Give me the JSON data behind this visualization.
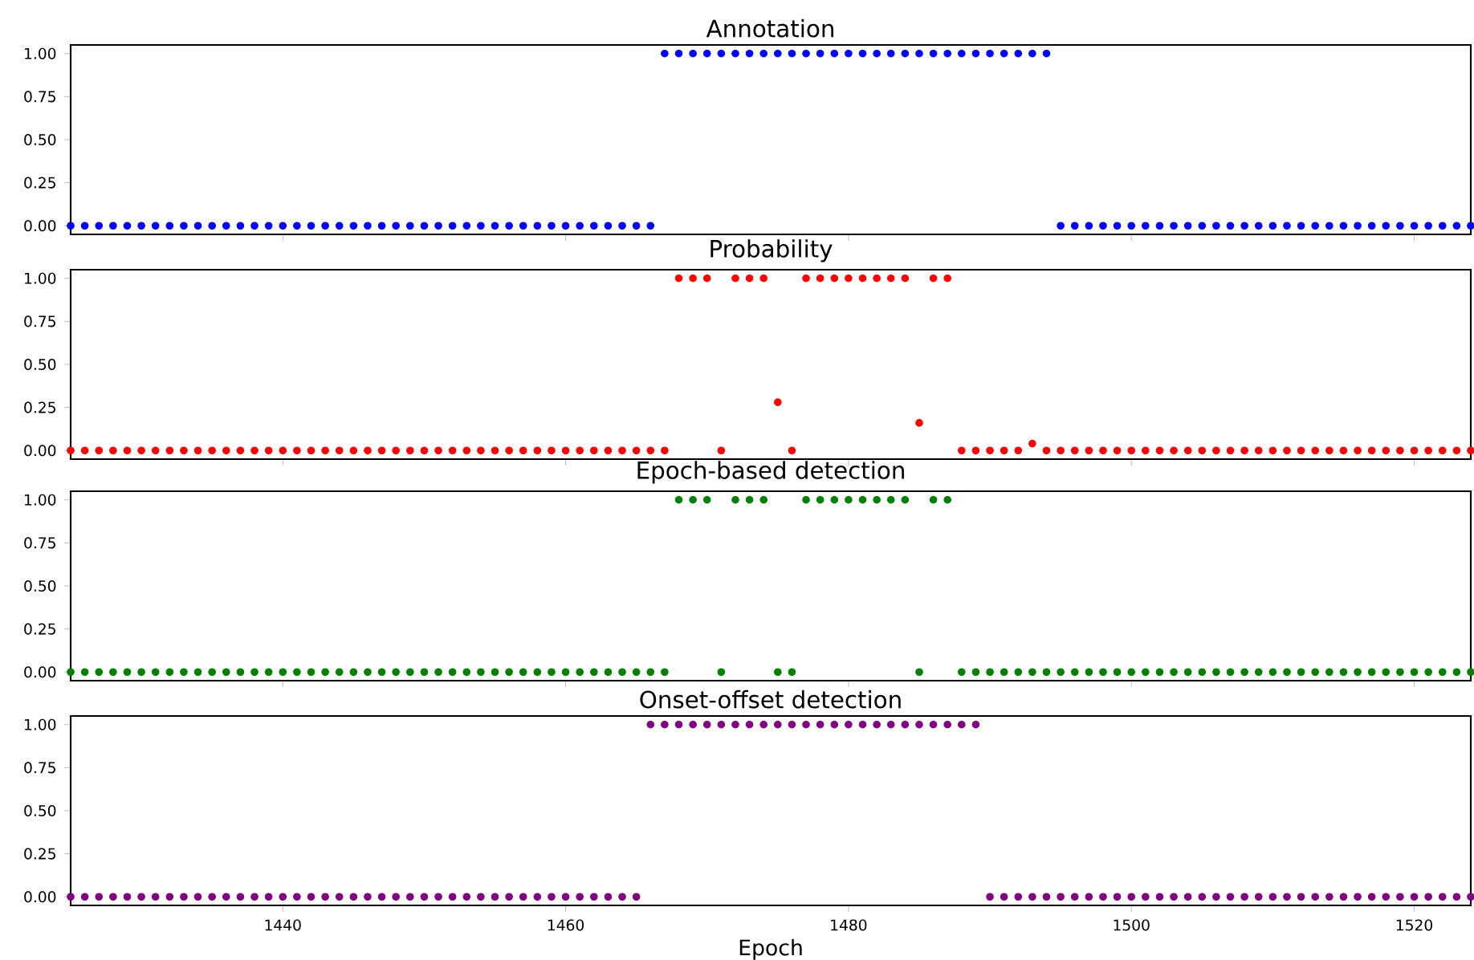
{
  "chart_data": [
    {
      "type": "scatter",
      "title": "Annotation",
      "color": "#0000ff",
      "marker": "circle",
      "tick_labels": "y",
      "xlim": [
        1425,
        1524
      ],
      "ylim": [
        -0.05,
        1.05
      ],
      "xticks": [
        1440,
        1460,
        1480,
        1500,
        1520
      ],
      "yticks": [
        {
          "value": 0,
          "label": "0.00"
        },
        {
          "value": 0.25,
          "label": "0.25"
        },
        {
          "value": 0.5,
          "label": "0.50"
        },
        {
          "value": 0.75,
          "label": "0.75"
        },
        {
          "value": 1,
          "label": "1.00"
        }
      ],
      "x": [
        1425,
        1426,
        1427,
        1428,
        1429,
        1430,
        1431,
        1432,
        1433,
        1434,
        1435,
        1436,
        1437,
        1438,
        1439,
        1440,
        1441,
        1442,
        1443,
        1444,
        1445,
        1446,
        1447,
        1448,
        1449,
        1450,
        1451,
        1452,
        1453,
        1454,
        1455,
        1456,
        1457,
        1458,
        1459,
        1460,
        1461,
        1462,
        1463,
        1464,
        1465,
        1466,
        1467,
        1468,
        1469,
        1470,
        1471,
        1472,
        1473,
        1474,
        1475,
        1476,
        1477,
        1478,
        1479,
        1480,
        1481,
        1482,
        1483,
        1484,
        1485,
        1486,
        1487,
        1488,
        1489,
        1490,
        1491,
        1492,
        1493,
        1494,
        1495,
        1496,
        1497,
        1498,
        1499,
        1500,
        1501,
        1502,
        1503,
        1504,
        1505,
        1506,
        1507,
        1508,
        1509,
        1510,
        1511,
        1512,
        1513,
        1514,
        1515,
        1516,
        1517,
        1518,
        1519,
        1520,
        1521,
        1522,
        1523,
        1524
      ],
      "values": [
        0,
        0,
        0,
        0,
        0,
        0,
        0,
        0,
        0,
        0,
        0,
        0,
        0,
        0,
        0,
        0,
        0,
        0,
        0,
        0,
        0,
        0,
        0,
        0,
        0,
        0,
        0,
        0,
        0,
        0,
        0,
        0,
        0,
        0,
        0,
        0,
        0,
        0,
        0,
        0,
        0,
        0,
        1,
        1,
        1,
        1,
        1,
        1,
        1,
        1,
        1,
        1,
        1,
        1,
        1,
        1,
        1,
        1,
        1,
        1,
        1,
        1,
        1,
        1,
        1,
        1,
        1,
        1,
        1,
        1,
        0,
        0,
        0,
        0,
        0,
        0,
        0,
        0,
        0,
        0,
        0,
        0,
        0,
        0,
        0,
        0,
        0,
        0,
        0,
        0,
        0,
        0,
        0,
        0,
        0,
        0,
        0,
        0,
        0,
        0
      ]
    },
    {
      "type": "scatter",
      "title": "Probability",
      "color": "#ff0000",
      "marker": "circle",
      "tick_labels": "y",
      "xlim": [
        1425,
        1524
      ],
      "ylim": [
        -0.05,
        1.05
      ],
      "xticks": [
        1440,
        1460,
        1480,
        1500,
        1520
      ],
      "yticks": [
        {
          "value": 0,
          "label": "0.00"
        },
        {
          "value": 0.25,
          "label": "0.25"
        },
        {
          "value": 0.5,
          "label": "0.50"
        },
        {
          "value": 0.75,
          "label": "0.75"
        },
        {
          "value": 1,
          "label": "1.00"
        }
      ],
      "x": [
        1425,
        1426,
        1427,
        1428,
        1429,
        1430,
        1431,
        1432,
        1433,
        1434,
        1435,
        1436,
        1437,
        1438,
        1439,
        1440,
        1441,
        1442,
        1443,
        1444,
        1445,
        1446,
        1447,
        1448,
        1449,
        1450,
        1451,
        1452,
        1453,
        1454,
        1455,
        1456,
        1457,
        1458,
        1459,
        1460,
        1461,
        1462,
        1463,
        1464,
        1465,
        1466,
        1467,
        1468,
        1469,
        1470,
        1471,
        1472,
        1473,
        1474,
        1475,
        1476,
        1477,
        1478,
        1479,
        1480,
        1481,
        1482,
        1483,
        1484,
        1485,
        1486,
        1487,
        1488,
        1489,
        1490,
        1491,
        1492,
        1493,
        1494,
        1495,
        1496,
        1497,
        1498,
        1499,
        1500,
        1501,
        1502,
        1503,
        1504,
        1505,
        1506,
        1507,
        1508,
        1509,
        1510,
        1511,
        1512,
        1513,
        1514,
        1515,
        1516,
        1517,
        1518,
        1519,
        1520,
        1521,
        1522,
        1523,
        1524
      ],
      "values": [
        0,
        0,
        0,
        0,
        0,
        0,
        0,
        0,
        0,
        0,
        0,
        0,
        0,
        0,
        0,
        0,
        0,
        0,
        0,
        0,
        0,
        0,
        0,
        0,
        0,
        0,
        0,
        0,
        0,
        0,
        0,
        0,
        0,
        0,
        0,
        0,
        0,
        0,
        0,
        0,
        0,
        0,
        0,
        1,
        1,
        1,
        0,
        1,
        1,
        1,
        0.28,
        0,
        1,
        1,
        1,
        1,
        1,
        1,
        1,
        1,
        0.16,
        1,
        1,
        0,
        0,
        0,
        0,
        0,
        0.04,
        0,
        0,
        0,
        0,
        0,
        0,
        0,
        0,
        0,
        0,
        0,
        0,
        0,
        0,
        0,
        0,
        0,
        0,
        0,
        0,
        0,
        0,
        0,
        0,
        0,
        0,
        0,
        0,
        0,
        0,
        0
      ]
    },
    {
      "type": "scatter",
      "title": "Epoch-based detection",
      "color": "#008000",
      "marker": "circle",
      "tick_labels": "y",
      "xlim": [
        1425,
        1524
      ],
      "ylim": [
        -0.05,
        1.05
      ],
      "xticks": [
        1440,
        1460,
        1480,
        1500,
        1520
      ],
      "yticks": [
        {
          "value": 0,
          "label": "0.00"
        },
        {
          "value": 0.25,
          "label": "0.25"
        },
        {
          "value": 0.5,
          "label": "0.50"
        },
        {
          "value": 0.75,
          "label": "0.75"
        },
        {
          "value": 1,
          "label": "1.00"
        }
      ],
      "x": [
        1425,
        1426,
        1427,
        1428,
        1429,
        1430,
        1431,
        1432,
        1433,
        1434,
        1435,
        1436,
        1437,
        1438,
        1439,
        1440,
        1441,
        1442,
        1443,
        1444,
        1445,
        1446,
        1447,
        1448,
        1449,
        1450,
        1451,
        1452,
        1453,
        1454,
        1455,
        1456,
        1457,
        1458,
        1459,
        1460,
        1461,
        1462,
        1463,
        1464,
        1465,
        1466,
        1467,
        1468,
        1469,
        1470,
        1471,
        1472,
        1473,
        1474,
        1475,
        1476,
        1477,
        1478,
        1479,
        1480,
        1481,
        1482,
        1483,
        1484,
        1485,
        1486,
        1487,
        1488,
        1489,
        1490,
        1491,
        1492,
        1493,
        1494,
        1495,
        1496,
        1497,
        1498,
        1499,
        1500,
        1501,
        1502,
        1503,
        1504,
        1505,
        1506,
        1507,
        1508,
        1509,
        1510,
        1511,
        1512,
        1513,
        1514,
        1515,
        1516,
        1517,
        1518,
        1519,
        1520,
        1521,
        1522,
        1523,
        1524
      ],
      "values": [
        0,
        0,
        0,
        0,
        0,
        0,
        0,
        0,
        0,
        0,
        0,
        0,
        0,
        0,
        0,
        0,
        0,
        0,
        0,
        0,
        0,
        0,
        0,
        0,
        0,
        0,
        0,
        0,
        0,
        0,
        0,
        0,
        0,
        0,
        0,
        0,
        0,
        0,
        0,
        0,
        0,
        0,
        0,
        1,
        1,
        1,
        0,
        1,
        1,
        1,
        0,
        0,
        1,
        1,
        1,
        1,
        1,
        1,
        1,
        1,
        0,
        1,
        1,
        0,
        0,
        0,
        0,
        0,
        0,
        0,
        0,
        0,
        0,
        0,
        0,
        0,
        0,
        0,
        0,
        0,
        0,
        0,
        0,
        0,
        0,
        0,
        0,
        0,
        0,
        0,
        0,
        0,
        0,
        0,
        0,
        0,
        0,
        0,
        0,
        0
      ]
    },
    {
      "type": "scatter",
      "title": "Onset-offset detection",
      "xlabel": "Epoch",
      "color": "#800080",
      "marker": "circle",
      "xlim": [
        1425,
        1524
      ],
      "ylim": [
        -0.05,
        1.05
      ],
      "xticks": [
        1440,
        1460,
        1480,
        1500,
        1520
      ],
      "yticks": [
        {
          "value": 0,
          "label": "0.00"
        },
        {
          "value": 0.25,
          "label": "0.25"
        },
        {
          "value": 0.5,
          "label": "0.50"
        },
        {
          "value": 0.75,
          "label": "0.75"
        },
        {
          "value": 1,
          "label": "1.00"
        }
      ],
      "x": [
        1425,
        1426,
        1427,
        1428,
        1429,
        1430,
        1431,
        1432,
        1433,
        1434,
        1435,
        1436,
        1437,
        1438,
        1439,
        1440,
        1441,
        1442,
        1443,
        1444,
        1445,
        1446,
        1447,
        1448,
        1449,
        1450,
        1451,
        1452,
        1453,
        1454,
        1455,
        1456,
        1457,
        1458,
        1459,
        1460,
        1461,
        1462,
        1463,
        1464,
        1465,
        1466,
        1467,
        1468,
        1469,
        1470,
        1471,
        1472,
        1473,
        1474,
        1475,
        1476,
        1477,
        1478,
        1479,
        1480,
        1481,
        1482,
        1483,
        1484,
        1485,
        1486,
        1487,
        1488,
        1489,
        1490,
        1491,
        1492,
        1493,
        1494,
        1495,
        1496,
        1497,
        1498,
        1499,
        1500,
        1501,
        1502,
        1503,
        1504,
        1505,
        1506,
        1507,
        1508,
        1509,
        1510,
        1511,
        1512,
        1513,
        1514,
        1515,
        1516,
        1517,
        1518,
        1519,
        1520,
        1521,
        1522,
        1523,
        1524
      ],
      "values": [
        0,
        0,
        0,
        0,
        0,
        0,
        0,
        0,
        0,
        0,
        0,
        0,
        0,
        0,
        0,
        0,
        0,
        0,
        0,
        0,
        0,
        0,
        0,
        0,
        0,
        0,
        0,
        0,
        0,
        0,
        0,
        0,
        0,
        0,
        0,
        0,
        0,
        0,
        0,
        0,
        0,
        1,
        1,
        1,
        1,
        1,
        1,
        1,
        1,
        1,
        1,
        1,
        1,
        1,
        1,
        1,
        1,
        1,
        1,
        1,
        1,
        1,
        1,
        1,
        1,
        0,
        0,
        0,
        0,
        0,
        0,
        0,
        0,
        0,
        0,
        0,
        0,
        0,
        0,
        0,
        0,
        0,
        0,
        0,
        0,
        0,
        0,
        0,
        0,
        0,
        0,
        0,
        0,
        0,
        0,
        0,
        0,
        0,
        0,
        0
      ]
    }
  ]
}
